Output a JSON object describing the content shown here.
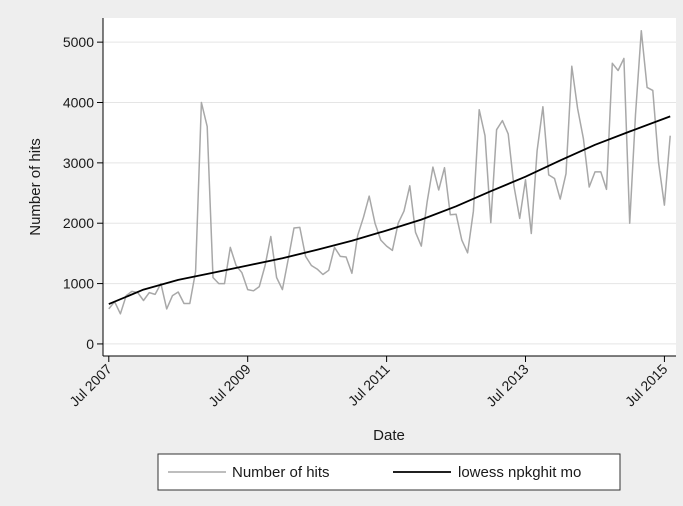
{
  "chart_data": {
    "type": "line",
    "xlabel": "Date",
    "ylabel": "Number of hits",
    "xlim": [
      "2007-06",
      "2015-09"
    ],
    "ylim": [
      -200,
      5400
    ],
    "x_ticks": [
      {
        "date": "2007-07",
        "label": "Jul 2007"
      },
      {
        "date": "2009-07",
        "label": "Jul 2009"
      },
      {
        "date": "2011-07",
        "label": "Jul 2011"
      },
      {
        "date": "2013-07",
        "label": "Jul 2013"
      },
      {
        "date": "2015-07",
        "label": "Jul 2015"
      }
    ],
    "y_ticks": [
      0,
      1000,
      2000,
      3000,
      4000,
      5000
    ],
    "grid": true,
    "legend_position": "bottom",
    "colors": {
      "hits": "#a8a8a8",
      "lowess": "#000000",
      "plot_bg": "#ffffff",
      "outer_bg": "#eeeeee",
      "grid": "#e5e5e5"
    },
    "series": [
      {
        "name": "Number of hits",
        "x": [
          "2007-07",
          "2007-08",
          "2007-09",
          "2007-10",
          "2007-11",
          "2007-12",
          "2008-01",
          "2008-02",
          "2008-03",
          "2008-04",
          "2008-05",
          "2008-06",
          "2008-07",
          "2008-08",
          "2008-09",
          "2008-10",
          "2008-11",
          "2008-12",
          "2009-01",
          "2009-02",
          "2009-03",
          "2009-04",
          "2009-05",
          "2009-06",
          "2009-07",
          "2009-08",
          "2009-09",
          "2009-10",
          "2009-11",
          "2009-12",
          "2010-01",
          "2010-02",
          "2010-03",
          "2010-04",
          "2010-05",
          "2010-06",
          "2010-07",
          "2010-08",
          "2010-09",
          "2010-10",
          "2010-11",
          "2010-12",
          "2011-01",
          "2011-02",
          "2011-03",
          "2011-04",
          "2011-05",
          "2011-06",
          "2011-07",
          "2011-08",
          "2011-09",
          "2011-10",
          "2011-11",
          "2011-12",
          "2012-01",
          "2012-02",
          "2012-03",
          "2012-04",
          "2012-05",
          "2012-06",
          "2012-07",
          "2012-08",
          "2012-09",
          "2012-10",
          "2012-11",
          "2012-12",
          "2013-01",
          "2013-02",
          "2013-03",
          "2013-04",
          "2013-05",
          "2013-06",
          "2013-07",
          "2013-08",
          "2013-09",
          "2013-10",
          "2013-11",
          "2013-12",
          "2014-01",
          "2014-02",
          "2014-03",
          "2014-04",
          "2014-05",
          "2014-06",
          "2014-07",
          "2014-08",
          "2014-09",
          "2014-10",
          "2014-11",
          "2014-12",
          "2015-01",
          "2015-02",
          "2015-03",
          "2015-04",
          "2015-05",
          "2015-06",
          "2015-07",
          "2015-08"
        ],
        "y": [
          580,
          700,
          500,
          800,
          870,
          850,
          720,
          850,
          820,
          1000,
          580,
          800,
          860,
          670,
          670,
          1200,
          4000,
          3600,
          1100,
          1000,
          1000,
          1600,
          1300,
          1180,
          900,
          880,
          950,
          1300,
          1780,
          1100,
          900,
          1400,
          1920,
          1930,
          1450,
          1300,
          1240,
          1150,
          1220,
          1600,
          1450,
          1440,
          1170,
          1800,
          2100,
          2450,
          2000,
          1720,
          1620,
          1550,
          2000,
          2200,
          2620,
          1850,
          1620,
          2350,
          2930,
          2550,
          2920,
          2140,
          2150,
          1720,
          1510,
          2200,
          3880,
          3450,
          2010,
          3550,
          3700,
          3480,
          2620,
          2080,
          2720,
          1830,
          3200,
          3930,
          2800,
          2740,
          2400,
          2820,
          4600,
          3900,
          3400,
          2600,
          2850,
          2850,
          2560,
          4650,
          4530,
          4730,
          2000,
          3800,
          5190,
          4250,
          4200,
          3000,
          2300,
          3450
        ]
      },
      {
        "name": "lowess npkghit mo",
        "x": [
          "2007-07",
          "2008-01",
          "2008-07",
          "2009-01",
          "2009-07",
          "2010-01",
          "2010-07",
          "2011-01",
          "2011-07",
          "2012-01",
          "2012-07",
          "2013-01",
          "2013-07",
          "2014-01",
          "2014-07",
          "2015-01",
          "2015-08"
        ],
        "y": [
          660,
          900,
          1060,
          1180,
          1300,
          1420,
          1560,
          1710,
          1880,
          2060,
          2280,
          2530,
          2770,
          3040,
          3300,
          3520,
          3770
        ]
      }
    ]
  }
}
